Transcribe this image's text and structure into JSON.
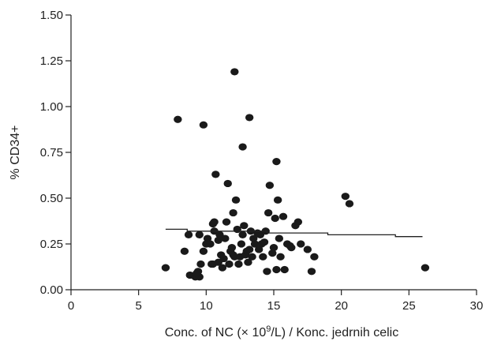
{
  "chart_data": {
    "type": "scatter",
    "xlabel": {
      "pre": "Conc. of NC (× 10",
      "sup": "9",
      "post": "/L) / Konc. jedrnih celic"
    },
    "ylabel": "% CD34+",
    "xlim": [
      0,
      30
    ],
    "ylim": [
      0,
      1.5
    ],
    "xticks": [
      "0",
      "5",
      "10",
      "15",
      "20",
      "25",
      "30"
    ],
    "yticks": [
      "0.00",
      "0.25",
      "0.50",
      "0.75",
      "1.00",
      "1.25",
      "1.50"
    ],
    "grid": false,
    "legend": "none",
    "point_color": "#1a1a1a",
    "points": [
      [
        7.0,
        0.12
      ],
      [
        7.9,
        0.93
      ],
      [
        9.8,
        0.9
      ],
      [
        12.1,
        1.19
      ],
      [
        13.2,
        0.94
      ],
      [
        12.7,
        0.78
      ],
      [
        8.7,
        0.3
      ],
      [
        8.4,
        0.21
      ],
      [
        8.8,
        0.08
      ],
      [
        9.2,
        0.07
      ],
      [
        9.4,
        0.1
      ],
      [
        9.5,
        0.07
      ],
      [
        9.8,
        0.21
      ],
      [
        10.0,
        0.25
      ],
      [
        10.1,
        0.28
      ],
      [
        10.3,
        0.25
      ],
      [
        9.6,
        0.14
      ],
      [
        9.5,
        0.3
      ],
      [
        10.5,
        0.36
      ],
      [
        10.6,
        0.32
      ],
      [
        10.7,
        0.63
      ],
      [
        10.9,
        0.27
      ],
      [
        10.5,
        0.14
      ],
      [
        10.9,
        0.15
      ],
      [
        11.1,
        0.19
      ],
      [
        11.3,
        0.17
      ],
      [
        11.4,
        0.28
      ],
      [
        11.5,
        0.37
      ],
      [
        11.6,
        0.58
      ],
      [
        11.8,
        0.21
      ],
      [
        11.2,
        0.12
      ],
      [
        11.7,
        0.14
      ],
      [
        11.9,
        0.23
      ],
      [
        12.0,
        0.42
      ],
      [
        12.2,
        0.49
      ],
      [
        12.3,
        0.33
      ],
      [
        12.1,
        0.18
      ],
      [
        12.4,
        0.14
      ],
      [
        12.5,
        0.18
      ],
      [
        12.6,
        0.25
      ],
      [
        12.7,
        0.3
      ],
      [
        12.8,
        0.35
      ],
      [
        12.9,
        0.19
      ],
      [
        13.0,
        0.21
      ],
      [
        13.1,
        0.15
      ],
      [
        13.2,
        0.22
      ],
      [
        13.3,
        0.32
      ],
      [
        13.4,
        0.18
      ],
      [
        13.6,
        0.25
      ],
      [
        13.8,
        0.31
      ],
      [
        13.9,
        0.22
      ],
      [
        14.0,
        0.3
      ],
      [
        14.1,
        0.25
      ],
      [
        14.2,
        0.18
      ],
      [
        14.4,
        0.32
      ],
      [
        14.6,
        0.42
      ],
      [
        14.7,
        0.57
      ],
      [
        14.5,
        0.1
      ],
      [
        14.9,
        0.2
      ],
      [
        15.0,
        0.23
      ],
      [
        15.1,
        0.39
      ],
      [
        15.2,
        0.7
      ],
      [
        15.3,
        0.49
      ],
      [
        15.4,
        0.28
      ],
      [
        15.2,
        0.11
      ],
      [
        15.5,
        0.18
      ],
      [
        15.7,
        0.4
      ],
      [
        15.8,
        0.11
      ],
      [
        16.0,
        0.25
      ],
      [
        16.3,
        0.23
      ],
      [
        16.6,
        0.35
      ],
      [
        16.8,
        0.37
      ],
      [
        17.0,
        0.25
      ],
      [
        17.5,
        0.22
      ],
      [
        17.8,
        0.1
      ],
      [
        18.0,
        0.18
      ],
      [
        20.3,
        0.51
      ],
      [
        20.6,
        0.47
      ],
      [
        26.2,
        0.12
      ],
      [
        10.4,
        0.14
      ],
      [
        11.0,
        0.3
      ],
      [
        12.0,
        0.19
      ],
      [
        13.5,
        0.28
      ],
      [
        14.3,
        0.26
      ],
      [
        9.3,
        0.09
      ],
      [
        10.6,
        0.37
      ],
      [
        16.2,
        0.24
      ]
    ],
    "trend_line": {
      "x": [
        7.0,
        8.6,
        8.6,
        14.5,
        14.5,
        19.0,
        19.0,
        24.0,
        24.0,
        26.0
      ],
      "y": [
        0.33,
        0.33,
        0.32,
        0.32,
        0.31,
        0.31,
        0.3,
        0.3,
        0.29,
        0.29
      ]
    }
  }
}
